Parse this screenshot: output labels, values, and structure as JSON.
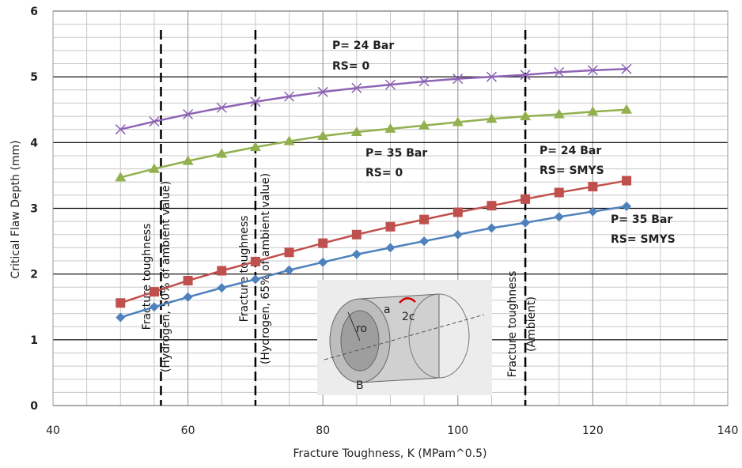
{
  "chart_data": {
    "type": "line",
    "xlabel": "Fracture Toughness, K (MPam^0.5)",
    "ylabel": "Critical Flaw Depth (mm)",
    "x": [
      50,
      55,
      60,
      65,
      70,
      75,
      80,
      85,
      90,
      95,
      100,
      105,
      110,
      115,
      120,
      125
    ],
    "xlim": [
      40,
      140
    ],
    "xticks": [
      40,
      60,
      80,
      100,
      120,
      140
    ],
    "ylim": [
      0,
      6
    ],
    "yticks": [
      0,
      1,
      2,
      3,
      4,
      5,
      6
    ],
    "grid": true,
    "minor_grid": {
      "x": 5,
      "y": 0.2
    },
    "series": [
      {
        "label_lines": [
          "P= 24 Bar",
          "RS= 0"
        ],
        "color": "#8e63b5",
        "marker": "x",
        "values": [
          4.2,
          4.32,
          4.43,
          4.53,
          4.62,
          4.7,
          4.77,
          4.83,
          4.88,
          4.93,
          4.97,
          5.0,
          5.03,
          5.07,
          5.1,
          5.12
        ]
      },
      {
        "label_lines": [
          "P= 35 Bar",
          "RS= 0"
        ],
        "color": "#92b04e",
        "marker": "triangle",
        "values": [
          3.47,
          3.6,
          3.72,
          3.83,
          3.93,
          4.02,
          4.1,
          4.16,
          4.21,
          4.26,
          4.31,
          4.36,
          4.4,
          4.43,
          4.47,
          4.5
        ]
      },
      {
        "label_lines": [
          "P= 24 Bar",
          "RS= SMYS"
        ],
        "color": "#c0504d",
        "marker": "square",
        "values": [
          1.56,
          1.73,
          1.9,
          2.05,
          2.19,
          2.33,
          2.47,
          2.6,
          2.72,
          2.83,
          2.94,
          3.04,
          3.14,
          3.24,
          3.33,
          3.42
        ]
      },
      {
        "label_lines": [
          "P= 35 Bar",
          "RS= SMYS"
        ],
        "color": "#4f81bd",
        "marker": "diamond",
        "values": [
          1.34,
          1.5,
          1.65,
          1.79,
          1.92,
          2.06,
          2.18,
          2.3,
          2.4,
          2.5,
          2.6,
          2.7,
          2.78,
          2.87,
          2.95,
          3.03
        ]
      }
    ],
    "reference_lines": [
      {
        "x": 56,
        "label": [
          "Fracture toughness",
          "(Hydrogen, 50% of ambient value)"
        ]
      },
      {
        "x": 70,
        "label": [
          "Fracture toughness",
          "(Hydrogen, 65% of ambient value)"
        ]
      },
      {
        "x": 110,
        "label": [
          "Fracture toughness",
          "(Ambient)"
        ]
      }
    ],
    "inset_labels": [
      "ro",
      "a",
      "2c",
      "B"
    ]
  }
}
